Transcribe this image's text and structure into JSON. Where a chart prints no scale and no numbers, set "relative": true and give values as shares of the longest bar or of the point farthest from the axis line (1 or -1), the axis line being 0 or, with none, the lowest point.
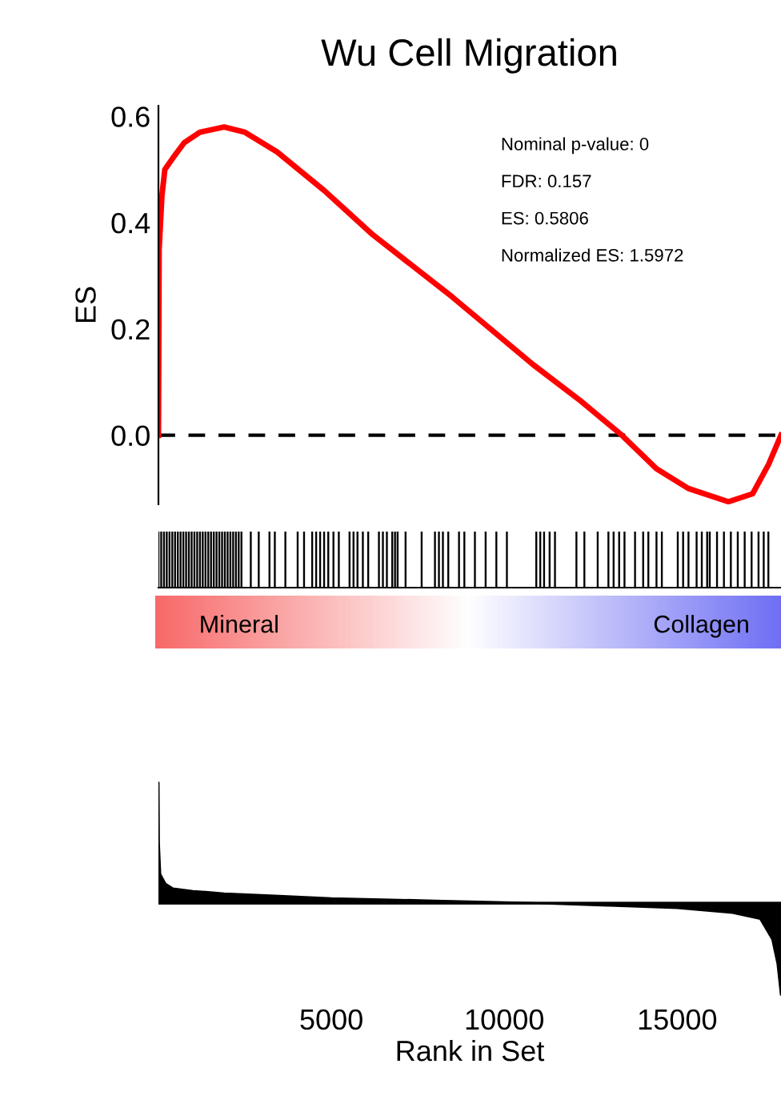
{
  "chart_data": [
    {
      "type": "line",
      "title": "Wu Cell Migration",
      "ylabel": "ES",
      "x": [
        0,
        20,
        100,
        185,
        400,
        740,
        1200,
        1900,
        2500,
        3430,
        4800,
        6200,
        8500,
        10830,
        12200,
        13400,
        14400,
        15320,
        16480,
        17180,
        17640,
        18000
      ],
      "series": [
        {
          "color": "#ff0000",
          "values": [
            0,
            0.35,
            0.45,
            0.5,
            0.52,
            0.55,
            0.57,
            0.58,
            0.57,
            0.533,
            0.46,
            0.377,
            0.26,
            0.133,
            0.065,
            0,
            -0.063,
            -0.1,
            -0.125,
            -0.11,
            -0.055,
            0
          ]
        }
      ],
      "xlim": [
        0,
        18000
      ],
      "xticks": [
        5000,
        10000,
        15000
      ],
      "ylim": [
        -0.13,
        0.62
      ],
      "yticks": [
        {
          "value": 0.0,
          "label": "0.0"
        },
        0.2,
        0.4,
        0.6
      ],
      "tick_labels": "y",
      "grid": false,
      "legend": false,
      "ref_lines": [
        {
          "axis": "y",
          "value": 0,
          "label": null,
          "color": "#000000",
          "line_style": "dashed"
        }
      ],
      "annotations": [
        "Nominal p-value: 0",
        "FDR: 0.157",
        "ES: 0.5806",
        "Normalized ES: 1.5972"
      ]
    },
    {
      "type": "bar",
      "relative": true,
      "x": [
        0,
        80,
        160,
        240,
        320,
        400,
        480,
        560,
        640,
        720,
        800,
        880,
        960,
        1040,
        1120,
        1200,
        1280,
        1360,
        1440,
        1520,
        1600,
        1680,
        1760,
        1840,
        1920,
        2000,
        2080,
        2160,
        2240,
        2320,
        2400,
        2670,
        2900,
        3210,
        3365,
        3670,
        4025,
        4210,
        4445,
        4560,
        4675,
        4790,
        4910,
        5060,
        5215,
        5525,
        5640,
        5755,
        5910,
        6065,
        6375,
        6490,
        6605,
        6760,
        6840,
        6915,
        7145,
        7610,
        7995,
        8110,
        8225,
        8380,
        8690,
        8845,
        9150,
        9460,
        9770,
        10075,
        10925,
        11040,
        11150,
        11310,
        11465,
        12085,
        12315,
        12700,
        13010,
        13160,
        13320,
        13475,
        13780,
        14015,
        14165,
        14400,
        14555,
        15015,
        15170,
        15325,
        15560,
        15710,
        15865,
        15940,
        16150,
        16350,
        16550,
        16750,
        16950,
        17150,
        17350,
        17500,
        17635
      ],
      "series": [
        {
          "color": "#000000",
          "values": [
            1,
            1,
            1,
            1,
            1,
            1,
            1,
            1,
            1,
            1,
            1,
            1,
            1,
            1,
            1,
            1,
            1,
            1,
            1,
            1,
            1,
            1,
            1,
            1,
            1,
            1,
            1,
            1,
            1,
            1,
            1,
            1,
            1,
            1,
            1,
            1,
            1,
            1,
            1,
            1,
            1,
            1,
            1,
            1,
            1,
            1,
            1,
            1,
            1,
            1,
            1,
            1,
            1,
            1,
            1,
            1,
            1,
            1,
            1,
            1,
            1,
            1,
            1,
            1,
            1,
            1,
            1,
            1,
            1,
            1,
            1,
            1,
            1,
            1,
            1,
            1,
            1,
            1,
            1,
            1,
            1,
            1,
            1,
            1,
            1,
            1,
            1,
            1,
            1,
            1,
            1,
            1,
            1,
            1,
            1,
            1,
            1,
            1,
            1,
            1,
            1
          ]
        }
      ],
      "xlim": [
        0,
        18000
      ],
      "xticks": [
        5000,
        10000,
        15000
      ],
      "tick_labels": false
    },
    {
      "type": "other",
      "colors": [
        "#f86a6a",
        "#ffffff",
        "#7070f5"
      ],
      "annotations": [
        "Mineral",
        "Collagen"
      ]
    },
    {
      "type": "area",
      "relative": true,
      "xlabel": "Rank in Set",
      "x": [
        0,
        10,
        50,
        200,
        420,
        1000,
        1900,
        3500,
        5000,
        8000,
        11000,
        13000,
        15000,
        16600,
        17400,
        17750,
        17900,
        18000
      ],
      "series": [
        {
          "color": "#000000",
          "values": [
            1,
            0.5,
            0.24,
            0.16,
            0.12,
            0.1,
            0.08,
            0.06,
            0.04,
            0.02,
            0,
            -0.02,
            -0.04,
            -0.08,
            -0.13,
            -0.3,
            -0.5,
            -0.76
          ]
        }
      ],
      "xlim": [
        0,
        18000
      ],
      "xticks": [
        5000,
        10000,
        15000
      ],
      "tick_labels": "x"
    }
  ]
}
